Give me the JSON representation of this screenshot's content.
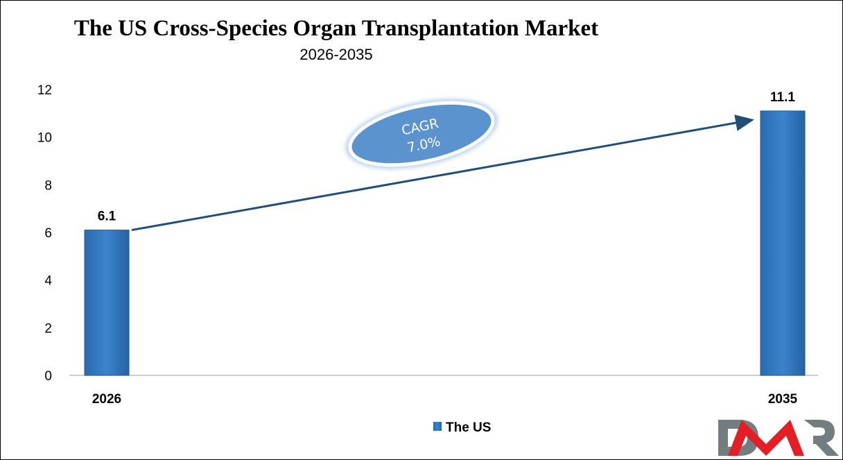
{
  "chart_data": {
    "type": "bar",
    "title": "The US Cross-Species Organ Transplantation Market",
    "subtitle": "2026-2035",
    "categories": [
      "2026",
      "2035"
    ],
    "series": [
      {
        "name": "The US",
        "values": [
          6.1,
          11.1
        ],
        "color": "#2e75b6"
      }
    ],
    "data_labels": [
      "6.1",
      "11.1"
    ],
    "ylim": [
      0,
      12
    ],
    "yticks": [
      "0",
      "2",
      "4",
      "6",
      "8",
      "10",
      "12"
    ],
    "grid": false,
    "legend": "bottom",
    "annotation": {
      "line1": "CAGR",
      "line2": "7.0%",
      "color": "#5b9bd5"
    }
  },
  "logo": {
    "text": "DMR",
    "colors": [
      "#717d7e",
      "#e31e24"
    ]
  }
}
